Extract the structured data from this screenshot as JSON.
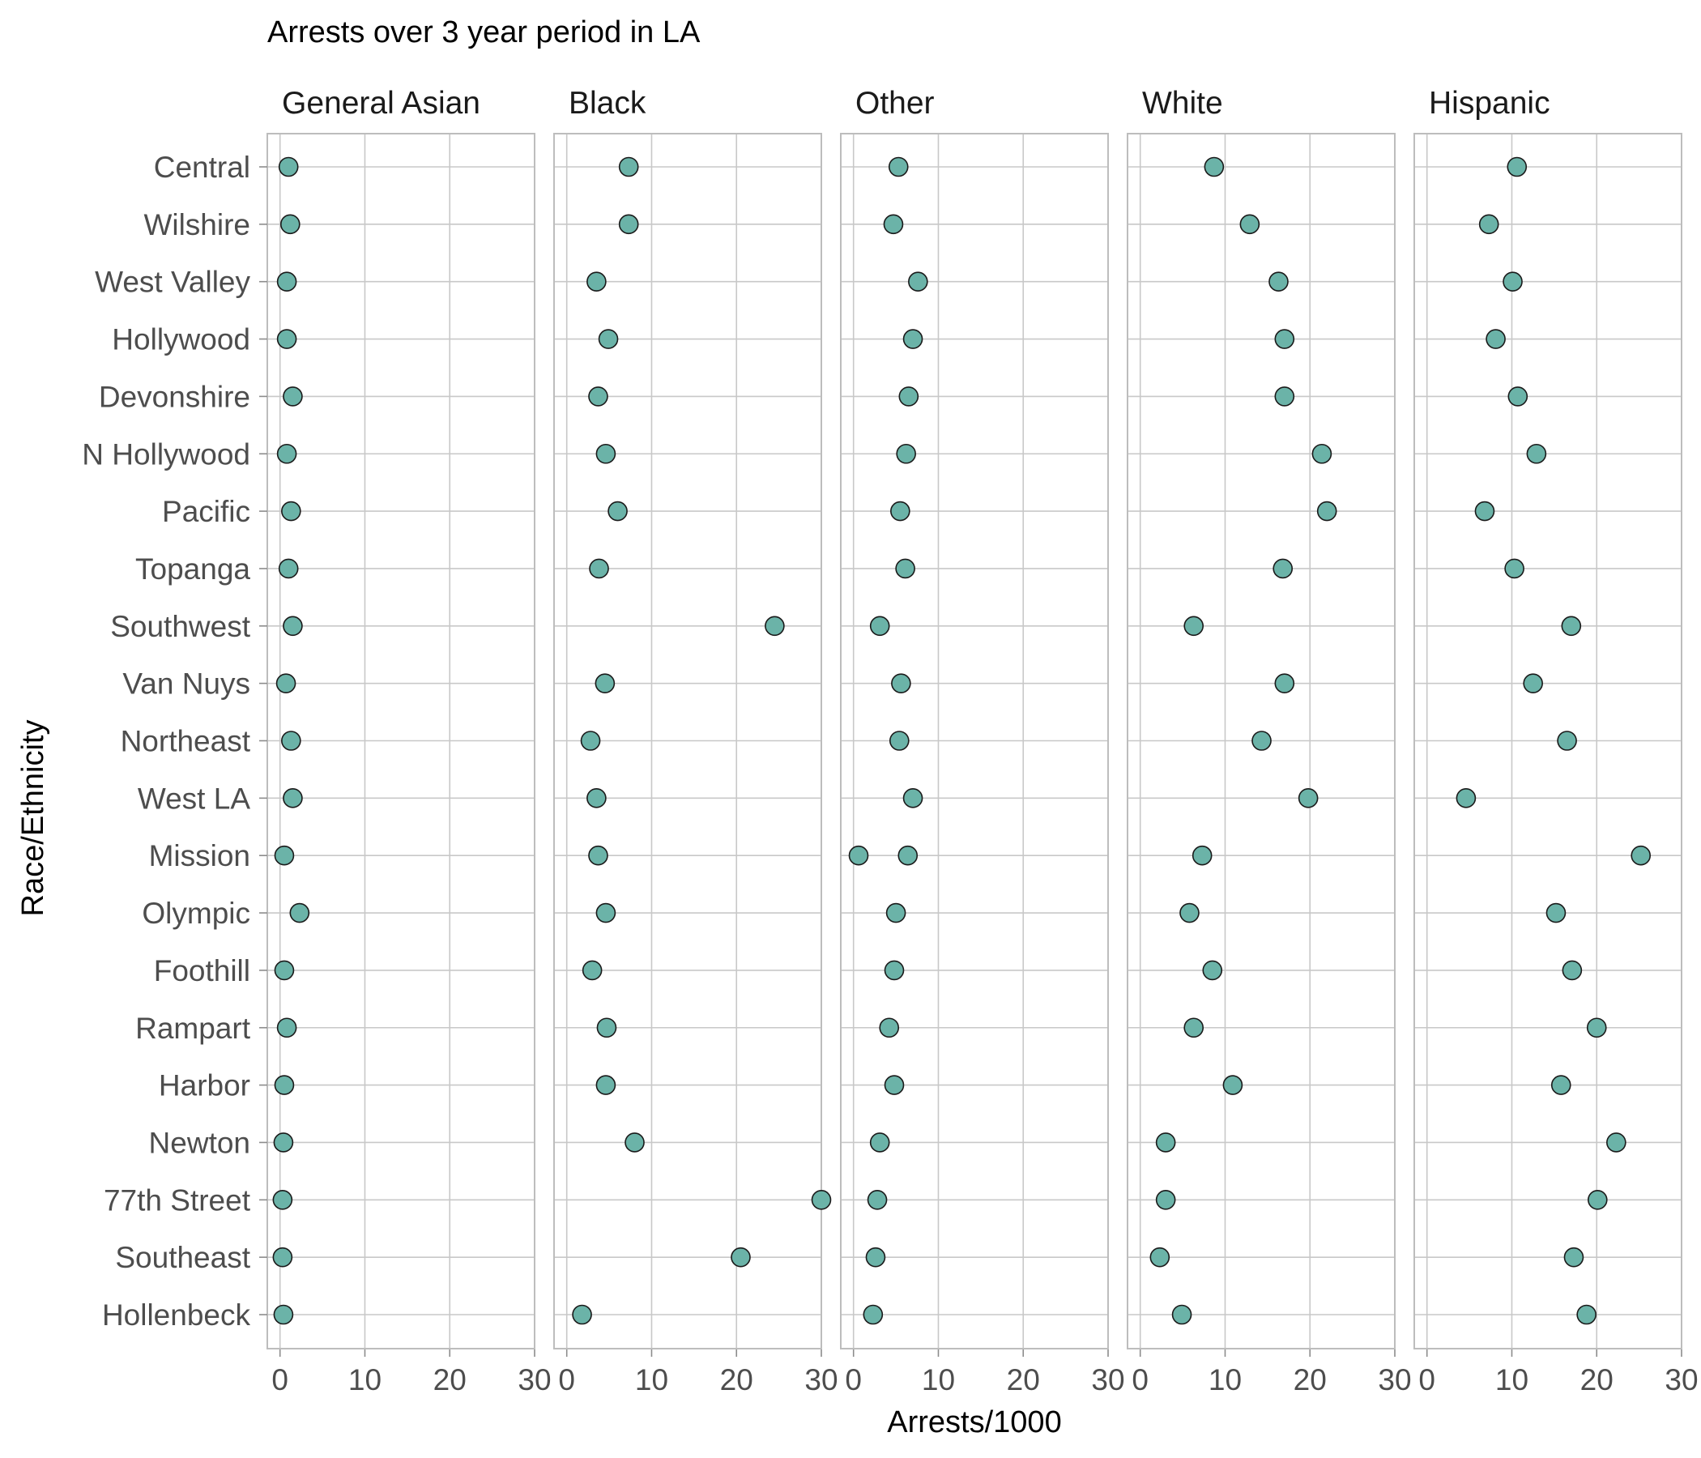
{
  "chart_data": {
    "type": "scatter",
    "title": "Arrests over 3 year period in LA",
    "xlabel": "Arrests/1000",
    "ylabel": "Race/Ethnicity",
    "xlim": [
      -1.5,
      30
    ],
    "xticks": [
      0,
      10,
      20,
      30
    ],
    "grid": true,
    "legend": "none",
    "marker_color": "#6bb3a8",
    "marker_edge_color": "#1a1a1a",
    "categories": [
      "Central",
      "Wilshire",
      "West Valley",
      "Hollywood",
      "Devonshire",
      "N Hollywood",
      "Pacific",
      "Topanga",
      "Southwest",
      "Van Nuys",
      "Northeast",
      "West LA",
      "Mission",
      "Olympic",
      "Foothill",
      "Rampart",
      "Harbor",
      "Newton",
      "77th Street",
      "Southeast",
      "Hollenbeck"
    ],
    "panels": [
      {
        "name": "General Asian",
        "points": [
          [
            0,
            1.0
          ],
          [
            1,
            1.2
          ],
          [
            2,
            0.8
          ],
          [
            3,
            0.8
          ],
          [
            4,
            1.5
          ],
          [
            5,
            0.8
          ],
          [
            6,
            1.3
          ],
          [
            7,
            1.0
          ],
          [
            8,
            1.5
          ],
          [
            9,
            0.7
          ],
          [
            10,
            1.3
          ],
          [
            11,
            1.5
          ],
          [
            12,
            0.5
          ],
          [
            13,
            2.3
          ],
          [
            14,
            0.5
          ],
          [
            15,
            0.8
          ],
          [
            16,
            0.5
          ],
          [
            17,
            0.4
          ],
          [
            18,
            0.3
          ],
          [
            19,
            0.3
          ],
          [
            20,
            0.4
          ]
        ]
      },
      {
        "name": "Black",
        "points": [
          [
            0,
            7.3
          ],
          [
            1,
            7.3
          ],
          [
            2,
            3.5
          ],
          [
            3,
            4.9
          ],
          [
            4,
            3.7
          ],
          [
            5,
            4.6
          ],
          [
            6,
            6.0
          ],
          [
            7,
            3.8
          ],
          [
            8,
            24.5
          ],
          [
            9,
            4.5
          ],
          [
            10,
            2.8
          ],
          [
            11,
            3.5
          ],
          [
            12,
            3.7
          ],
          [
            13,
            4.6
          ],
          [
            14,
            3.0
          ],
          [
            15,
            4.7
          ],
          [
            16,
            4.6
          ],
          [
            17,
            8.0
          ],
          [
            18,
            30.0
          ],
          [
            19,
            20.5
          ],
          [
            20,
            1.8
          ]
        ]
      },
      {
        "name": "Other",
        "points": [
          [
            0,
            5.3
          ],
          [
            1,
            4.7
          ],
          [
            2,
            7.6
          ],
          [
            3,
            7.0
          ],
          [
            4,
            6.5
          ],
          [
            5,
            6.2
          ],
          [
            6,
            5.5
          ],
          [
            7,
            6.1
          ],
          [
            8,
            3.1
          ],
          [
            9,
            5.6
          ],
          [
            10,
            5.4
          ],
          [
            11,
            7.0
          ],
          [
            12,
            0.6
          ],
          [
            12,
            6.4
          ],
          [
            13,
            5.0
          ],
          [
            14,
            4.8
          ],
          [
            15,
            4.2
          ],
          [
            16,
            4.8
          ],
          [
            17,
            3.1
          ],
          [
            18,
            2.8
          ],
          [
            19,
            2.6
          ],
          [
            20,
            2.3
          ]
        ]
      },
      {
        "name": "White",
        "points": [
          [
            0,
            8.7
          ],
          [
            1,
            12.9
          ],
          [
            2,
            16.3
          ],
          [
            3,
            17.0
          ],
          [
            4,
            17.0
          ],
          [
            5,
            21.4
          ],
          [
            6,
            22.0
          ],
          [
            7,
            16.8
          ],
          [
            8,
            6.3
          ],
          [
            9,
            17.0
          ],
          [
            10,
            14.3
          ],
          [
            11,
            19.8
          ],
          [
            12,
            7.3
          ],
          [
            13,
            5.8
          ],
          [
            14,
            8.5
          ],
          [
            15,
            6.3
          ],
          [
            16,
            10.9
          ],
          [
            17,
            3.0
          ],
          [
            18,
            3.0
          ],
          [
            19,
            2.3
          ],
          [
            20,
            4.9
          ]
        ]
      },
      {
        "name": "Hispanic",
        "points": [
          [
            0,
            10.6
          ],
          [
            1,
            7.3
          ],
          [
            2,
            10.1
          ],
          [
            3,
            8.1
          ],
          [
            4,
            10.7
          ],
          [
            5,
            12.9
          ],
          [
            6,
            6.8
          ],
          [
            7,
            10.3
          ],
          [
            8,
            17.0
          ],
          [
            9,
            12.5
          ],
          [
            10,
            16.5
          ],
          [
            11,
            4.6
          ],
          [
            12,
            25.2
          ],
          [
            13,
            15.2
          ],
          [
            14,
            17.1
          ],
          [
            15,
            20.0
          ],
          [
            16,
            15.8
          ],
          [
            17,
            22.3
          ],
          [
            18,
            20.1
          ],
          [
            19,
            17.3
          ],
          [
            20,
            18.8
          ]
        ]
      }
    ]
  }
}
